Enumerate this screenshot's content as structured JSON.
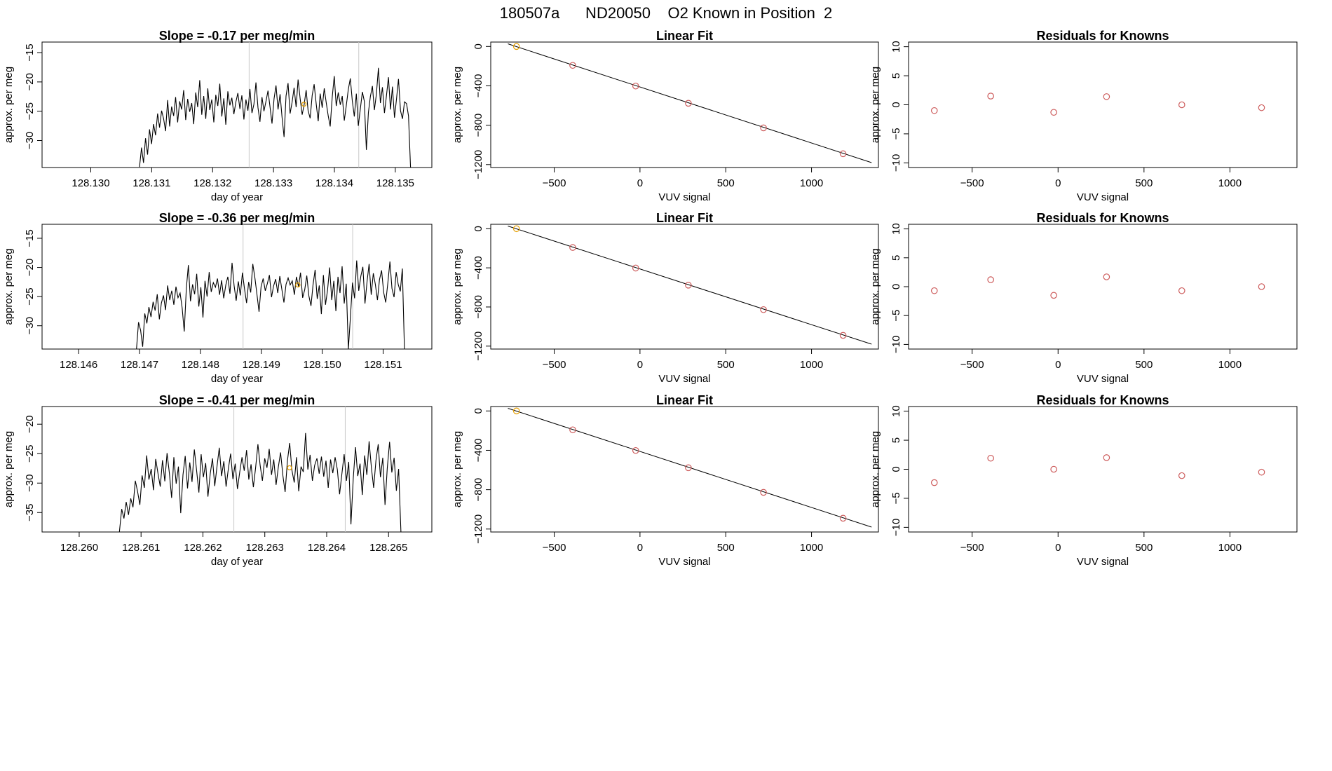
{
  "suptitle": "180507a      ND20050    O2 Known in Position  2",
  "chart_data": [
    {
      "type": "line",
      "title": "Slope =  -0.17  per meg/min",
      "xlabel": "day of year",
      "ylabel": "approx. per meg",
      "xlim": [
        128.1292,
        128.1356
      ],
      "ylim": [
        -34.6,
        -13.2
      ],
      "xticks": [
        128.13,
        128.131,
        128.132,
        128.133,
        128.134,
        128.135
      ],
      "xtick_labels": [
        "128.130",
        "128.131",
        "128.132",
        "128.133",
        "128.134",
        "128.135"
      ],
      "yticks": [
        -15,
        -20,
        -25,
        -30
      ],
      "vlines": [
        128.1326,
        128.1344
      ],
      "highlight": {
        "x": 128.1335,
        "y": -23.8,
        "color": "#e69f00"
      },
      "x_start": 128.1308,
      "x_end": 128.13525,
      "values": [
        -34.5,
        -31.2,
        -33.8,
        -29.6,
        -32.4,
        -28.1,
        -30.6,
        -27.2,
        -29.1,
        -25.4,
        -27.8,
        -24.9,
        -26.3,
        -28.4,
        -23.1,
        -27.6,
        -24.2,
        -25.8,
        -22.6,
        -26.9,
        -23.3,
        -24.7,
        -21.4,
        -26.5,
        -22.9,
        -25.1,
        -23.6,
        -27.2,
        -21.8,
        -24.3,
        -19.7,
        -25.6,
        -22.4,
        -26.3,
        -21.1,
        -24.8,
        -23.0,
        -26.9,
        -22.2,
        -24.1,
        -20.3,
        -25.9,
        -22.8,
        -27.3,
        -21.6,
        -24.0,
        -22.7,
        -25.5,
        -23.4,
        -21.9,
        -24.6,
        -22.3,
        -26.4,
        -23.0,
        -24.9,
        -21.2,
        -25.3,
        -23.8,
        -20.1,
        -24.4,
        -26.8,
        -22.6,
        -25.0,
        -23.3,
        -21.5,
        -24.2,
        -27.1,
        -22.9,
        -20.6,
        -24.7,
        -22.1,
        -26.0,
        -29.4,
        -22.4,
        -20.2,
        -25.4,
        -23.5,
        -21.0,
        -24.3,
        -19.6,
        -22.8,
        -25.6,
        -23.9,
        -21.4,
        -24.9,
        -26.2,
        -22.3,
        -20.4,
        -23.7,
        -26.7,
        -22.0,
        -24.4,
        -21.1,
        -23.5,
        -25.8,
        -27.6,
        -22.6,
        -19.0,
        -24.1,
        -21.8,
        -23.9,
        -22.4,
        -26.6,
        -24.0,
        -21.3,
        -19.4,
        -23.2,
        -25.9,
        -22.0,
        -27.5,
        -24.6,
        -21.7,
        -23.3,
        -31.6,
        -25.2,
        -22.5,
        -20.7,
        -24.8,
        -22.1,
        -17.6,
        -23.6,
        -20.9,
        -25.3,
        -22.4,
        -19.2,
        -24.7,
        -20.8,
        -26.1,
        -23.0,
        -19.5,
        -24.9,
        -26.3,
        -23.4,
        -23.7,
        -25.8,
        -34.6
      ]
    },
    {
      "type": "scatter",
      "title": "Linear Fit",
      "xlabel": "VUV signal",
      "ylabel": "approx. per meg",
      "xlim": [
        -870,
        1390
      ],
      "ylim": [
        -1230,
        45
      ],
      "xticks": [
        -500,
        0,
        500,
        1000
      ],
      "yticks": [
        0,
        -400,
        -800,
        -1200
      ],
      "points": [
        {
          "x": -720,
          "y": 0,
          "color": "#e69f00"
        },
        {
          "x": -392,
          "y": -192,
          "color": "#cd5c5c"
        },
        {
          "x": -25,
          "y": -402,
          "color": "#cd5c5c"
        },
        {
          "x": 282,
          "y": -577,
          "color": "#cd5c5c"
        },
        {
          "x": 720,
          "y": -827,
          "color": "#cd5c5c"
        },
        {
          "x": 1184,
          "y": -1090,
          "color": "#cd5c5c"
        }
      ],
      "fit": {
        "x": [
          -770,
          1350
        ],
        "y": [
          27,
          -1180
        ]
      }
    },
    {
      "type": "scatter",
      "title": "Residuals for Knowns",
      "xlabel": "VUV signal",
      "ylabel": "approx. per meg",
      "xlim": [
        -870,
        1390
      ],
      "ylim": [
        -10.8,
        10.8
      ],
      "xticks": [
        -500,
        0,
        500,
        1000
      ],
      "yticks": [
        10,
        5,
        0,
        -5,
        -10
      ],
      "points": [
        {
          "x": -720,
          "y": -1.0,
          "color": "#cd5c5c"
        },
        {
          "x": -392,
          "y": 1.5,
          "color": "#cd5c5c"
        },
        {
          "x": -25,
          "y": -1.3,
          "color": "#cd5c5c"
        },
        {
          "x": 282,
          "y": 1.4,
          "color": "#cd5c5c"
        },
        {
          "x": 720,
          "y": 0.0,
          "color": "#cd5c5c"
        },
        {
          "x": 1184,
          "y": -0.5,
          "color": "#cd5c5c"
        }
      ]
    },
    {
      "type": "line",
      "title": "Slope =  -0.36  per meg/min",
      "xlabel": "day of year",
      "ylabel": "approx. per meg",
      "xlim": [
        128.1454,
        128.1518
      ],
      "ylim": [
        -34.0,
        -12.6
      ],
      "xticks": [
        128.146,
        128.147,
        128.148,
        128.149,
        128.15,
        128.151
      ],
      "xtick_labels": [
        "128.146",
        "128.147",
        "128.148",
        "128.149",
        "128.150",
        "128.151"
      ],
      "yticks": [
        -15,
        -20,
        -25,
        -30
      ],
      "vlines": [
        128.1487,
        128.1505
      ],
      "highlight": {
        "x": 128.1496,
        "y": -23.0,
        "color": "#e69f00"
      },
      "x_start": 128.14695,
      "x_end": 128.15135,
      "values": [
        -34.0,
        -29.4,
        -30.8,
        -33.6,
        -27.9,
        -29.6,
        -26.8,
        -28.5,
        -25.9,
        -27.4,
        -24.6,
        -28.9,
        -26.1,
        -24.8,
        -27.3,
        -23.1,
        -25.6,
        -24.0,
        -26.4,
        -23.3,
        -25.2,
        -24.4,
        -26.9,
        -31.0,
        -23.6,
        -19.6,
        -25.8,
        -22.9,
        -24.6,
        -21.1,
        -26.7,
        -23.4,
        -28.6,
        -22.3,
        -25.0,
        -20.8,
        -24.2,
        -22.6,
        -23.4,
        -21.9,
        -24.7,
        -22.2,
        -25.3,
        -23.0,
        -21.6,
        -24.5,
        -19.2,
        -23.1,
        -25.7,
        -22.4,
        -24.8,
        -20.9,
        -23.6,
        -26.1,
        -22.5,
        -24.3,
        -19.4,
        -21.8,
        -24.6,
        -27.6,
        -23.3,
        -21.9,
        -24.0,
        -22.8,
        -21.3,
        -25.1,
        -23.2,
        -22.0,
        -24.4,
        -21.5,
        -23.8,
        -26.0,
        -22.9,
        -21.8,
        -23.0,
        -22.3,
        -24.7,
        -21.6,
        -23.3,
        -20.9,
        -25.2,
        -23.8,
        -21.4,
        -24.9,
        -26.6,
        -23.0,
        -20.4,
        -25.4,
        -23.1,
        -28.0,
        -21.3,
        -26.4,
        -23.8,
        -20.0,
        -25.6,
        -22.3,
        -27.5,
        -21.6,
        -24.4,
        -19.8,
        -26.2,
        -22.8,
        -34.0,
        -28.4,
        -22.6,
        -25.3,
        -18.8,
        -24.0,
        -21.5,
        -19.9,
        -26.2,
        -22.4,
        -19.4,
        -24.7,
        -21.0,
        -22.9,
        -25.6,
        -22.1,
        -20.5,
        -24.3,
        -26.0,
        -22.7,
        -19.0,
        -23.6,
        -25.1,
        -20.8,
        -22.9,
        -24.1,
        -20.2,
        -34.0
      ]
    },
    {
      "type": "scatter",
      "title": "Linear Fit",
      "xlabel": "VUV signal",
      "ylabel": "approx. per meg",
      "xlim": [
        -870,
        1390
      ],
      "ylim": [
        -1230,
        45
      ],
      "xticks": [
        -500,
        0,
        500,
        1000
      ],
      "yticks": [
        0,
        -400,
        -800,
        -1200
      ],
      "points": [
        {
          "x": -720,
          "y": 0,
          "color": "#e69f00"
        },
        {
          "x": -392,
          "y": -192,
          "color": "#cd5c5c"
        },
        {
          "x": -25,
          "y": -402,
          "color": "#cd5c5c"
        },
        {
          "x": 282,
          "y": -577,
          "color": "#cd5c5c"
        },
        {
          "x": 720,
          "y": -827,
          "color": "#cd5c5c"
        },
        {
          "x": 1184,
          "y": -1090,
          "color": "#cd5c5c"
        }
      ],
      "fit": {
        "x": [
          -770,
          1350
        ],
        "y": [
          27,
          -1180
        ]
      }
    },
    {
      "type": "scatter",
      "title": "Residuals for Knowns",
      "xlabel": "VUV signal",
      "ylabel": "approx. per meg",
      "xlim": [
        -870,
        1390
      ],
      "ylim": [
        -10.8,
        10.8
      ],
      "xticks": [
        -500,
        0,
        500,
        1000
      ],
      "yticks": [
        10,
        5,
        0,
        -5,
        -10
      ],
      "points": [
        {
          "x": -720,
          "y": -0.7,
          "color": "#cd5c5c"
        },
        {
          "x": -392,
          "y": 1.2,
          "color": "#cd5c5c"
        },
        {
          "x": -25,
          "y": -1.5,
          "color": "#cd5c5c"
        },
        {
          "x": 282,
          "y": 1.7,
          "color": "#cd5c5c"
        },
        {
          "x": 720,
          "y": -0.7,
          "color": "#cd5c5c"
        },
        {
          "x": 1184,
          "y": 0.0,
          "color": "#cd5c5c"
        }
      ]
    },
    {
      "type": "line",
      "title": "Slope =  -0.41  per meg/min",
      "xlabel": "day of year",
      "ylabel": "approx. per meg",
      "xlim": [
        128.2594,
        128.2657
      ],
      "ylim": [
        -38.3,
        -17.0
      ],
      "xticks": [
        128.26,
        128.261,
        128.262,
        128.263,
        128.264,
        128.265
      ],
      "xtick_labels": [
        "128.260",
        "128.261",
        "128.262",
        "128.263",
        "128.264",
        "128.265"
      ],
      "yticks": [
        -20,
        -25,
        -30,
        -35
      ],
      "vlines": [
        128.2625,
        128.2643
      ],
      "highlight": {
        "x": 128.2634,
        "y": -27.4,
        "color": "#e69f00"
      },
      "x_start": 128.26065,
      "x_end": 128.2652,
      "values": [
        -38.3,
        -34.4,
        -36.0,
        -33.2,
        -35.4,
        -32.6,
        -34.1,
        -29.6,
        -31.4,
        -33.7,
        -28.7,
        -30.8,
        -25.3,
        -29.4,
        -27.6,
        -31.2,
        -25.9,
        -28.4,
        -30.6,
        -26.1,
        -29.7,
        -24.9,
        -28.3,
        -32.5,
        -25.6,
        -30.1,
        -27.2,
        -35.1,
        -28.6,
        -25.4,
        -30.9,
        -26.5,
        -29.8,
        -24.3,
        -27.8,
        -31.6,
        -25.1,
        -29.0,
        -26.6,
        -32.3,
        -28.4,
        -25.8,
        -30.5,
        -27.1,
        -24.0,
        -28.8,
        -26.3,
        -30.6,
        -27.5,
        -25.0,
        -29.3,
        -26.7,
        -31.0,
        -28.1,
        -25.6,
        -27.9,
        -24.4,
        -29.4,
        -26.8,
        -30.7,
        -27.4,
        -23.4,
        -27.0,
        -29.6,
        -25.8,
        -27.4,
        -24.2,
        -28.6,
        -26.0,
        -30.3,
        -27.3,
        -24.8,
        -28.7,
        -31.5,
        -26.2,
        -23.2,
        -27.8,
        -29.9,
        -25.6,
        -31.4,
        -27.2,
        -28.1,
        -21.5,
        -27.7,
        -25.2,
        -29.6,
        -27.0,
        -25.8,
        -28.4,
        -25.5,
        -28.9,
        -26.2,
        -30.8,
        -26.0,
        -28.3,
        -25.6,
        -27.7,
        -31.9,
        -28.4,
        -25.1,
        -29.6,
        -26.4,
        -37.0,
        -29.2,
        -23.9,
        -28.8,
        -26.7,
        -32.0,
        -25.3,
        -28.6,
        -22.9,
        -27.4,
        -30.8,
        -26.1,
        -23.4,
        -29.0,
        -25.7,
        -33.7,
        -27.5,
        -23.0,
        -28.2,
        -25.7,
        -31.3,
        -27.6,
        -38.3
      ]
    },
    {
      "type": "scatter",
      "title": "Linear Fit",
      "xlabel": "VUV signal",
      "ylabel": "approx. per meg",
      "xlim": [
        -870,
        1390
      ],
      "ylim": [
        -1230,
        45
      ],
      "xticks": [
        -500,
        0,
        500,
        1000
      ],
      "yticks": [
        0,
        -400,
        -800,
        -1200
      ],
      "points": [
        {
          "x": -720,
          "y": 0,
          "color": "#e69f00"
        },
        {
          "x": -392,
          "y": -192,
          "color": "#cd5c5c"
        },
        {
          "x": -25,
          "y": -402,
          "color": "#cd5c5c"
        },
        {
          "x": 282,
          "y": -577,
          "color": "#cd5c5c"
        },
        {
          "x": 720,
          "y": -827,
          "color": "#cd5c5c"
        },
        {
          "x": 1184,
          "y": -1090,
          "color": "#cd5c5c"
        }
      ],
      "fit": {
        "x": [
          -770,
          1350
        ],
        "y": [
          27,
          -1180
        ]
      }
    },
    {
      "type": "scatter",
      "title": "Residuals for Knowns",
      "xlabel": "VUV signal",
      "ylabel": "approx. per meg",
      "xlim": [
        -870,
        1390
      ],
      "ylim": [
        -10.8,
        10.8
      ],
      "xticks": [
        -500,
        0,
        500,
        1000
      ],
      "yticks": [
        10,
        5,
        0,
        -5,
        -10
      ],
      "points": [
        {
          "x": -720,
          "y": -2.3,
          "color": "#cd5c5c"
        },
        {
          "x": -392,
          "y": 1.9,
          "color": "#cd5c5c"
        },
        {
          "x": -25,
          "y": 0.0,
          "color": "#cd5c5c"
        },
        {
          "x": 282,
          "y": 2.0,
          "color": "#cd5c5c"
        },
        {
          "x": 720,
          "y": -1.1,
          "color": "#cd5c5c"
        },
        {
          "x": 1184,
          "y": -0.5,
          "color": "#cd5c5c"
        }
      ]
    }
  ]
}
